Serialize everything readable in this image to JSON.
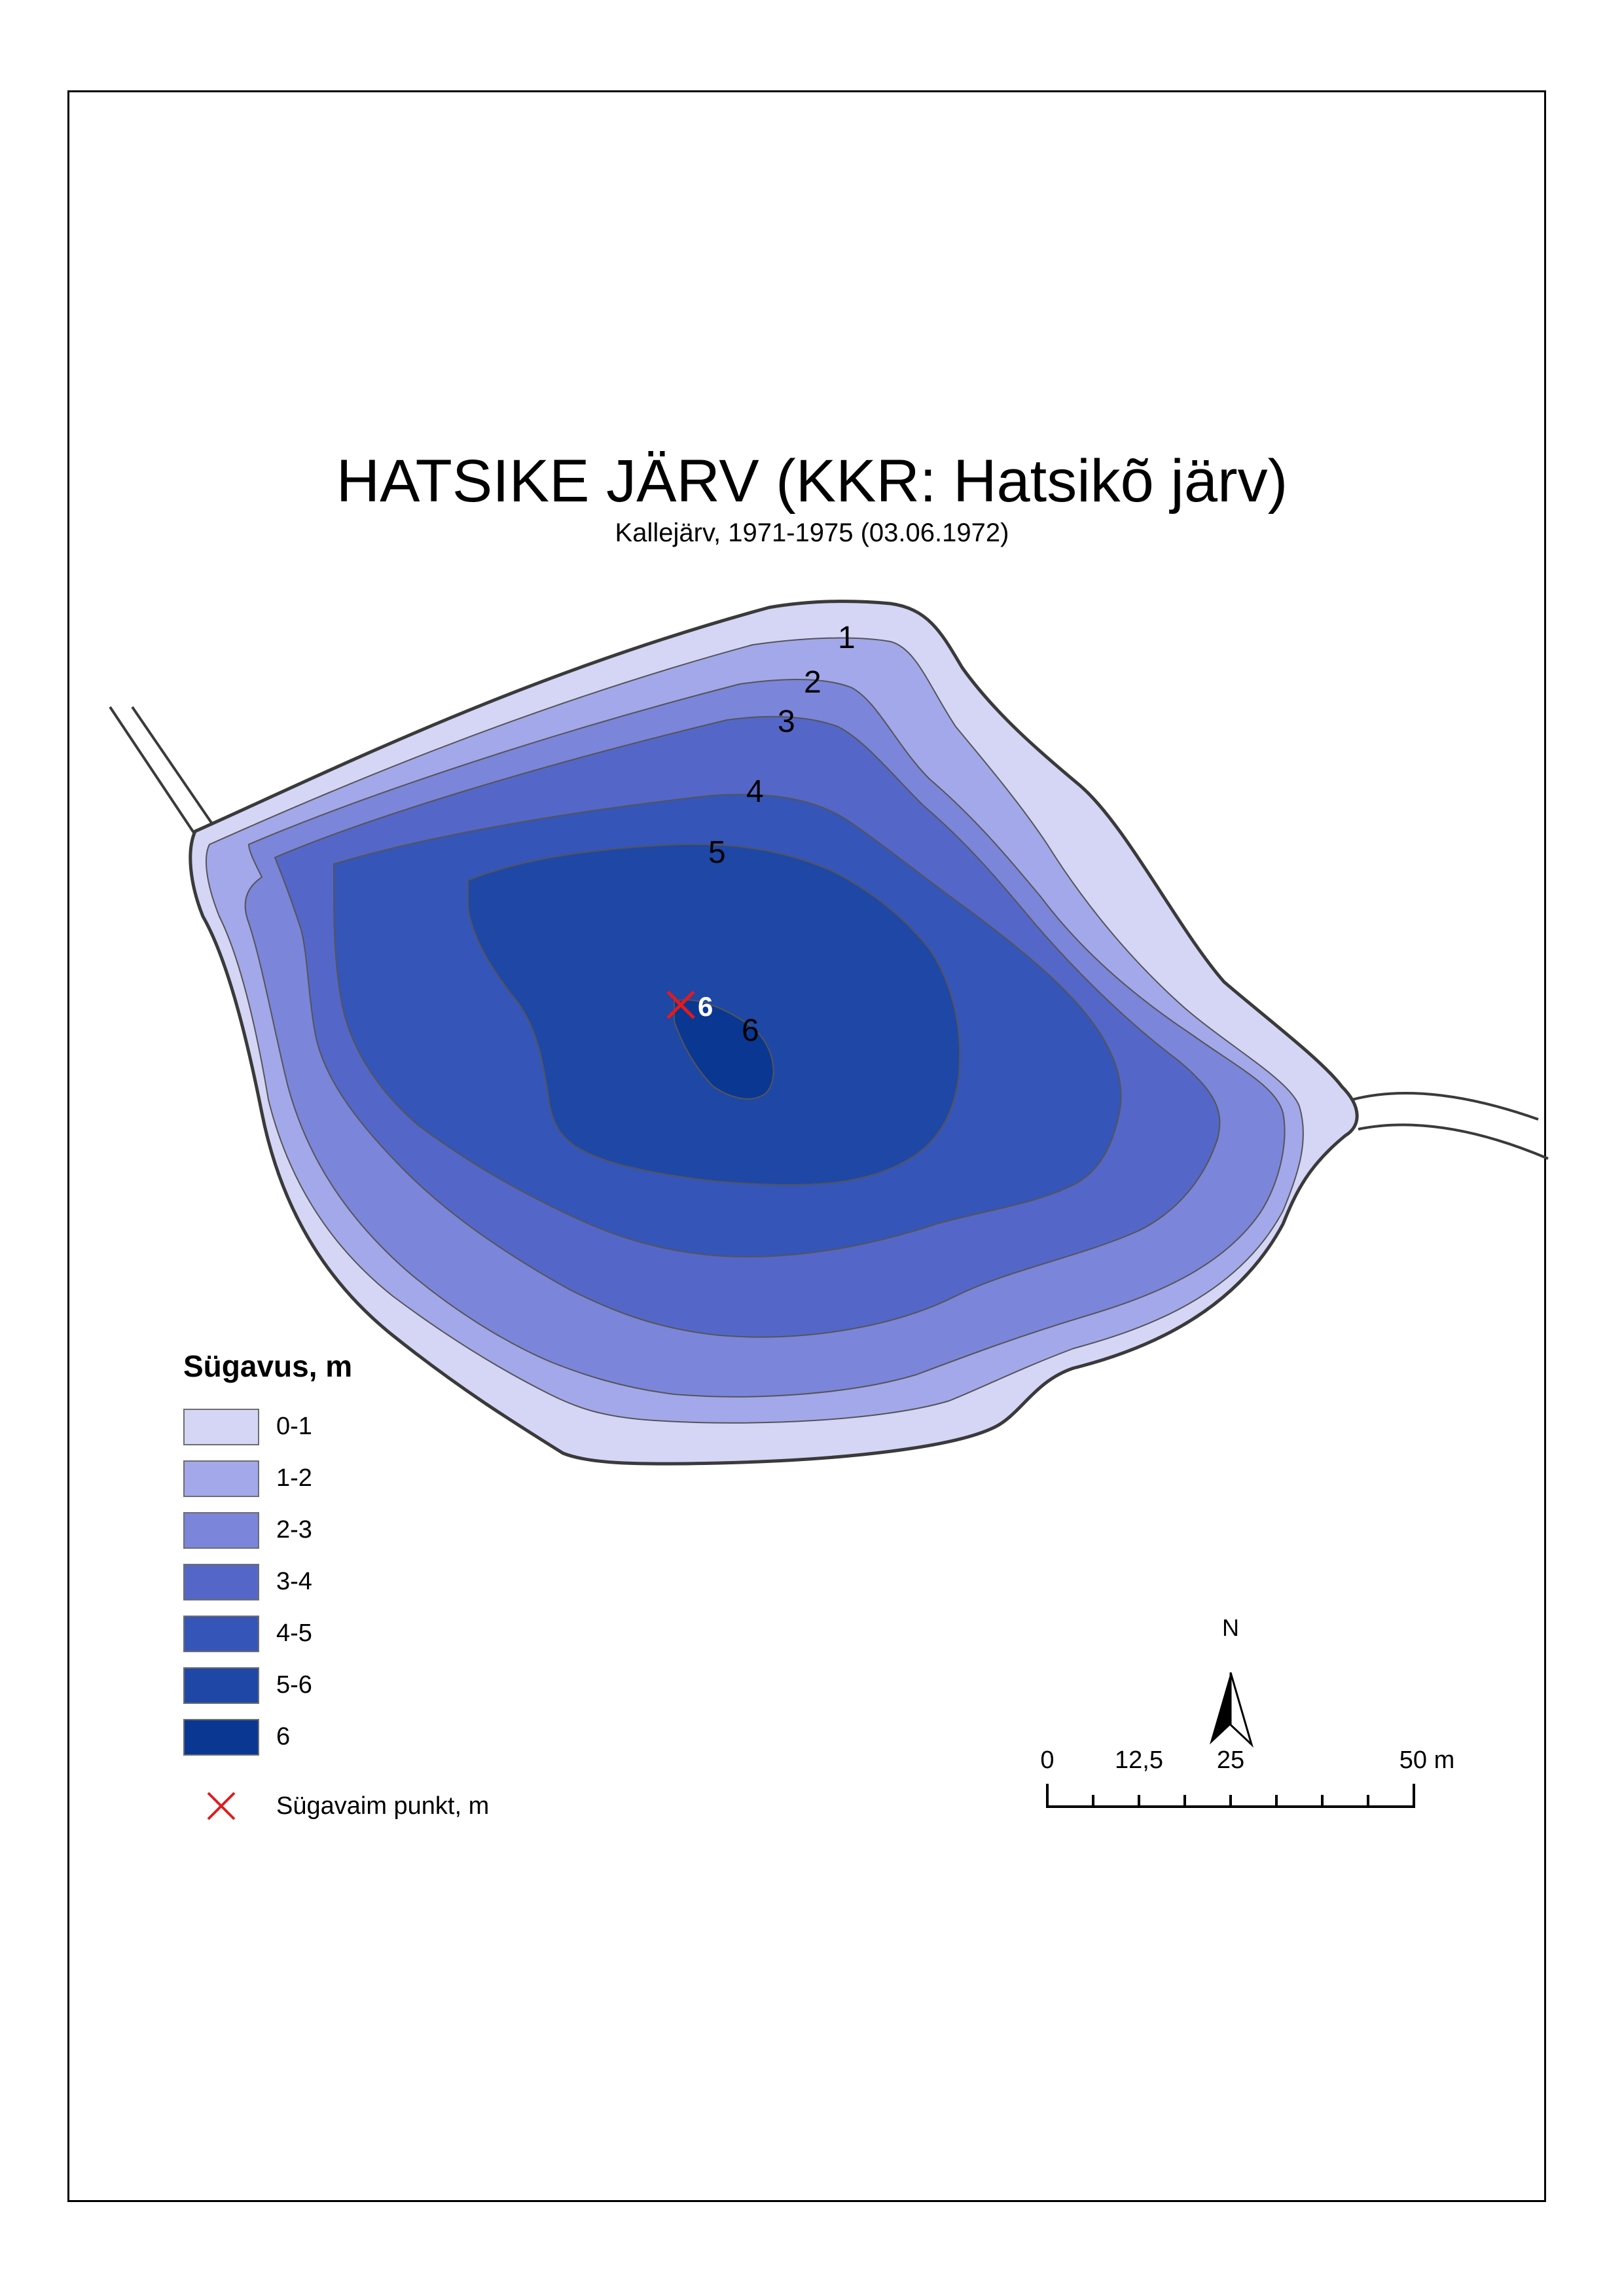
{
  "map": {
    "title": "HATSIKE JÄRV (KKR: Hatsikõ järv)",
    "subtitle": "Kallejärv, 1971-1975 (03.06.1972)",
    "contour_labels": [
      "1",
      "2",
      "3",
      "4",
      "5",
      "6"
    ],
    "deepest_point_label": "6"
  },
  "legend": {
    "title": "Sügavus, m",
    "items": [
      {
        "label": "0-1",
        "color": "#d5d6f6"
      },
      {
        "label": "1-2",
        "color": "#a3a8ea"
      },
      {
        "label": "2-3",
        "color": "#7b85da"
      },
      {
        "label": "3-4",
        "color": "#5467c8"
      },
      {
        "label": "4-5",
        "color": "#3555b8"
      },
      {
        "label": "5-6",
        "color": "#1e47a6"
      },
      {
        "label": "6",
        "color": "#0a3792"
      }
    ],
    "deepest_point": {
      "label": "Sügavaim punkt, m",
      "color": "#e31a1c"
    }
  },
  "scale_bar": {
    "labels": [
      "0",
      "12,5",
      "25",
      "50 m"
    ]
  },
  "north_arrow": {
    "label": "N"
  }
}
